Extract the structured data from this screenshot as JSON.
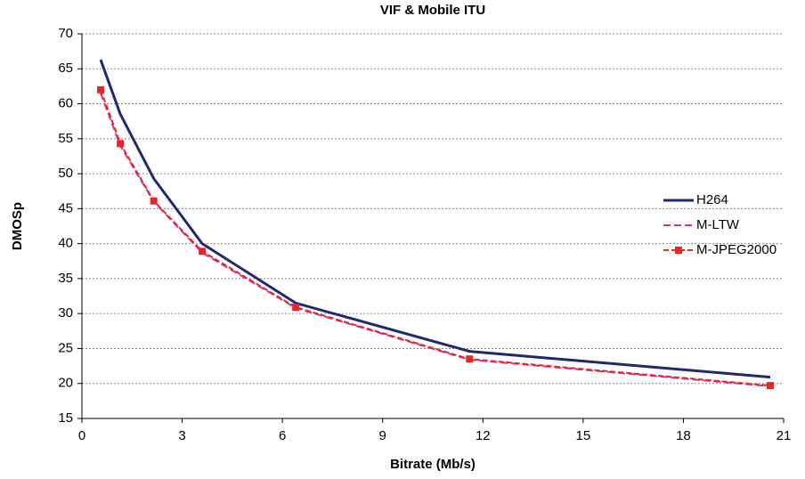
{
  "chart_data": {
    "type": "line",
    "title": "VIF & Mobile ITU",
    "x_label": "Bitrate (Mb/s)",
    "y_label": "DMOSp",
    "xlim": [
      0,
      21
    ],
    "xticks": [
      0,
      3,
      6,
      9,
      12,
      15,
      18,
      21
    ],
    "ylim": [
      15,
      70
    ],
    "yticks": [
      15,
      20,
      25,
      30,
      35,
      40,
      45,
      50,
      55,
      60,
      65,
      70
    ],
    "grid": true,
    "legend": "right",
    "x": [
      0.56,
      1.15,
      2.15,
      3.6,
      6.4,
      11.6,
      20.6
    ],
    "series": [
      {
        "name": "H264",
        "color": "#1f2a6e",
        "dash": "solid",
        "marker": "none",
        "values": [
          66.3,
          58.5,
          49.3,
          40.0,
          31.5,
          24.6,
          20.9
        ]
      },
      {
        "name": "M-LTW",
        "color": "#cc3399",
        "dash": "dashed",
        "marker": "none",
        "values": [
          61.5,
          54.0,
          46.0,
          38.7,
          30.8,
          23.4,
          19.6
        ]
      },
      {
        "name": "M-JPEG2000",
        "color": "#e8262a",
        "dash": "dashed",
        "marker": "square",
        "values": [
          62.0,
          54.3,
          46.1,
          38.9,
          30.9,
          23.5,
          19.7
        ]
      }
    ]
  }
}
